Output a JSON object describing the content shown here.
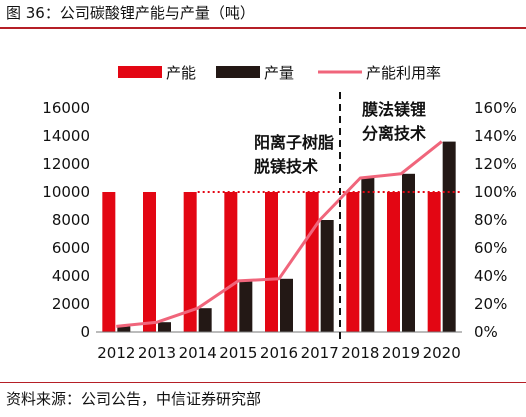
{
  "figure": {
    "title": "图 36：公司碳酸锂产能与产量（吨）",
    "source": "资料来源：公司公告，中信证券研究部"
  },
  "chart_data": {
    "type": "bar",
    "categories": [
      "2012",
      "2013",
      "2014",
      "2015",
      "2016",
      "2017",
      "2018",
      "2019",
      "2020"
    ],
    "series": [
      {
        "name": "产能",
        "type": "bar",
        "axis": "left",
        "color": "#e30613",
        "values": [
          10000,
          10000,
          10000,
          10000,
          10000,
          10000,
          10000,
          10000,
          10000
        ]
      },
      {
        "name": "产量",
        "type": "bar",
        "axis": "left",
        "color": "#231815",
        "values": [
          400,
          700,
          1700,
          3650,
          3800,
          8000,
          11000,
          11300,
          13600
        ]
      },
      {
        "name": "产能利用率",
        "type": "line",
        "axis": "right",
        "color": "#f0657b",
        "values": [
          4,
          7,
          17,
          36.5,
          38,
          80,
          110,
          113,
          136
        ]
      }
    ],
    "y_left": {
      "min": 0,
      "max": 16000,
      "ticks": [
        "0",
        "2000",
        "4000",
        "6000",
        "8000",
        "10000",
        "12000",
        "14000",
        "16000"
      ]
    },
    "y_right": {
      "min": 0,
      "max": 160,
      "ticks": [
        "0%",
        "20%",
        "40%",
        "60%",
        "80%",
        "100%",
        "120%",
        "140%",
        "160%"
      ]
    },
    "reference_line": {
      "value": 100,
      "axis": "right",
      "color": "#e30613",
      "style": "dotted"
    },
    "annotations": [
      {
        "lines": [
          "阳离子树脂",
          "脱镁技术"
        ]
      },
      {
        "lines": [
          "膜法镁锂",
          "分离技术"
        ]
      }
    ],
    "divider_between": [
      "2017",
      "2018"
    ],
    "legend_position": "top",
    "grid": false
  }
}
